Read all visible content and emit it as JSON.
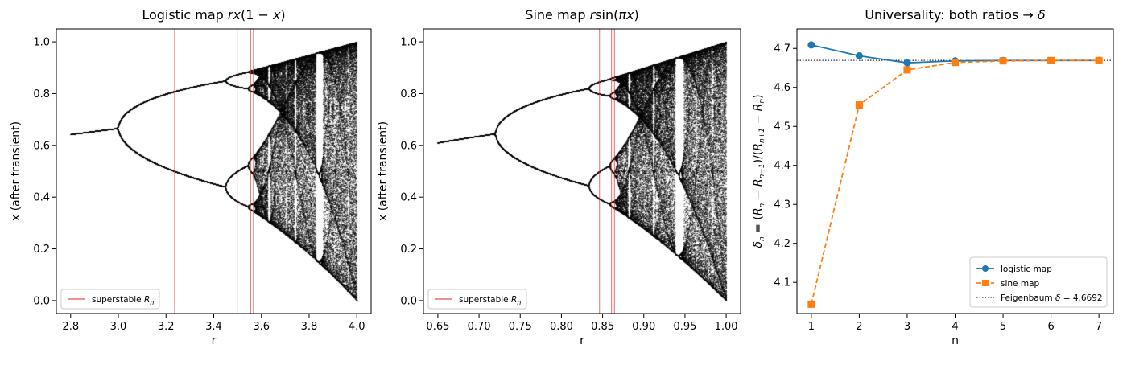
{
  "chart_data": [
    {
      "type": "scatter",
      "title": "Logistic map rx(1 − x)",
      "title_parts": [
        "Logistic map ",
        "rx",
        "(1 − ",
        "x",
        ")"
      ],
      "xlabel": "r",
      "ylabel": "x (after transient)",
      "xlim": [
        2.74,
        4.06
      ],
      "ylim": [
        -0.05,
        1.05
      ],
      "xticks": [
        "2.8",
        "3.0",
        "3.2",
        "3.4",
        "3.6",
        "3.8",
        "4.0"
      ],
      "yticks": [
        "0.0",
        "0.2",
        "0.4",
        "0.6",
        "0.8",
        "1.0"
      ],
      "map": "logistic",
      "r_range": [
        2.8,
        4.0
      ],
      "superstable_R": [
        3.2361,
        3.4986,
        3.5546,
        3.5667
      ],
      "legend": {
        "label": "superstable R",
        "subscript": "n",
        "position": "lower-left"
      },
      "colors": {
        "points": "#000000",
        "superstable": "#d62728"
      }
    },
    {
      "type": "scatter",
      "title": "Sine map rsin(πx)",
      "title_parts": [
        "Sine map ",
        "r",
        "sin(",
        "πx",
        ")"
      ],
      "xlabel": "r",
      "ylabel": "x (after transient)",
      "xlim": [
        0.6325,
        1.0175
      ],
      "ylim": [
        -0.05,
        1.05
      ],
      "xticks": [
        "0.65",
        "0.70",
        "0.75",
        "0.80",
        "0.85",
        "0.90",
        "0.95",
        "1.00"
      ],
      "yticks": [
        "0.0",
        "0.2",
        "0.4",
        "0.6",
        "0.8",
        "1.0"
      ],
      "map": "sine",
      "r_range": [
        0.65,
        1.0
      ],
      "superstable_R": [
        0.7777,
        0.8463,
        0.8609,
        0.8643
      ],
      "legend": {
        "label": "superstable R",
        "subscript": "n",
        "position": "lower-left"
      },
      "colors": {
        "points": "#000000",
        "superstable": "#d62728"
      }
    },
    {
      "type": "line",
      "title": "Universality: both ratios → δ",
      "title_parts": [
        "Universality: both ratios ",
        "→",
        "δ"
      ],
      "xlabel": "n",
      "ylabel": "δn = (Rn − Rn−1)/(Rn+1 − Rn)",
      "xlim": [
        0.7,
        7.3
      ],
      "ylim": [
        4.02,
        4.75
      ],
      "xticks": [
        "1",
        "2",
        "3",
        "4",
        "5",
        "6",
        "7"
      ],
      "yticks": [
        "4.1",
        "4.2",
        "4.3",
        "4.4",
        "4.5",
        "4.6",
        "4.7"
      ],
      "x": [
        1,
        2,
        3,
        4,
        5,
        6,
        7
      ],
      "series": [
        {
          "name": "logistic map",
          "values": [
            4.709,
            4.681,
            4.663,
            4.668,
            4.669,
            4.669,
            4.669
          ],
          "color": "#1f77b4",
          "marker": "circle",
          "style": "solid"
        },
        {
          "name": "sine map",
          "values": [
            4.044,
            4.555,
            4.645,
            4.664,
            4.668,
            4.669,
            4.669
          ],
          "color": "#ff7f0e",
          "marker": "square",
          "style": "dashed"
        }
      ],
      "reference": {
        "name": "Feigenbaum δ = 4.6692",
        "value": 4.6692,
        "color": "#000000",
        "style": "dotted"
      },
      "legend": {
        "position": "lower-right"
      }
    }
  ]
}
